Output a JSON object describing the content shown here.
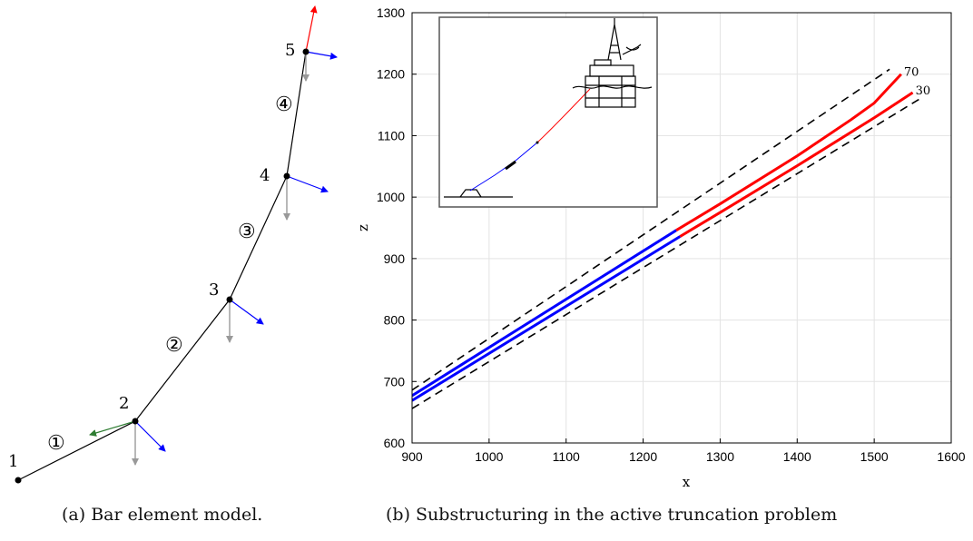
{
  "captions": {
    "a": "(a) Bar element model.",
    "b": "(b) Substructuring in the active truncation problem"
  },
  "bar_model": {
    "nodes": [
      "1",
      "2",
      "3",
      "4",
      "5"
    ],
    "elements": [
      "①",
      "②",
      "③",
      "④"
    ],
    "colors": {
      "line": "#000000",
      "tangent": "#0000ff",
      "gravity": "#999999",
      "top_force": "#ff0000",
      "bottom_force": "#2e7d32"
    }
  },
  "chart_data": {
    "type": "line",
    "xlabel": "x",
    "ylabel": "z",
    "xlim": [
      900,
      1600
    ],
    "ylim": [
      600,
      1300
    ],
    "xticks": [
      900,
      1000,
      1100,
      1200,
      1300,
      1400,
      1500,
      1600
    ],
    "yticks": [
      600,
      700,
      800,
      900,
      1000,
      1100,
      1200,
      1300
    ],
    "grid": true,
    "series": [
      {
        "name": "70",
        "style": "solid",
        "color": "#0000ff",
        "x": [
          900,
          1243
        ],
        "y": [
          677,
          946
        ]
      },
      {
        "name": "70",
        "style": "solid",
        "color": "#ff0000",
        "x": [
          1243,
          1300,
          1400,
          1470,
          1500,
          1535
        ],
        "y": [
          946,
          989,
          1067,
          1126,
          1153,
          1200
        ]
      },
      {
        "name": "30",
        "style": "solid",
        "color": "#0000ff",
        "x": [
          900,
          1248
        ],
        "y": [
          669,
          936
        ]
      },
      {
        "name": "30",
        "style": "solid",
        "color": "#ff0000",
        "x": [
          1248,
          1300,
          1400,
          1500,
          1550
        ],
        "y": [
          936,
          975,
          1051,
          1129,
          1170
        ]
      },
      {
        "name": "",
        "style": "dashed",
        "color": "#000000",
        "x": [
          900,
          1520
        ],
        "y": [
          686,
          1208
        ]
      },
      {
        "name": "",
        "style": "dashed",
        "color": "#000000",
        "x": [
          900,
          1562
        ],
        "y": [
          656,
          1162
        ]
      }
    ],
    "end_labels": [
      "70",
      "30"
    ]
  }
}
